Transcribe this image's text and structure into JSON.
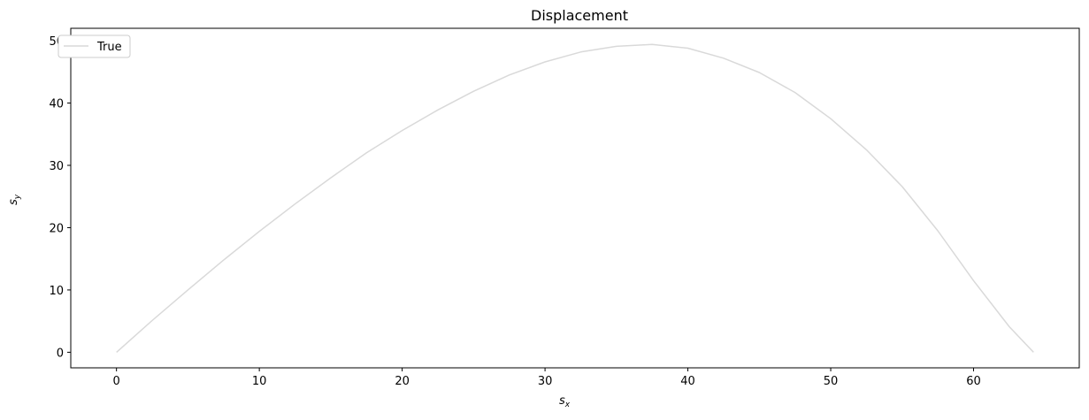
{
  "chart_data": {
    "type": "line",
    "title": "Displacement",
    "xlabel": "s",
    "xlabel_sub": "x",
    "ylabel": "s",
    "ylabel_sub": "y",
    "xlim": [
      -3.2,
      67.4
    ],
    "ylim": [
      -2.5,
      52.0
    ],
    "xticks": [
      0,
      10,
      20,
      30,
      40,
      50,
      60
    ],
    "yticks": [
      0,
      10,
      20,
      30,
      40,
      50
    ],
    "grid": false,
    "legend": {
      "position": "top-left",
      "entries": [
        "True"
      ]
    },
    "series": [
      {
        "name": "True",
        "color": "#d9d9d9",
        "x": [
          0.0,
          2.5,
          5.0,
          7.5,
          10.0,
          12.5,
          15.0,
          17.5,
          20.0,
          22.5,
          25.0,
          27.5,
          30.0,
          32.5,
          35.0,
          37.5,
          40.0,
          42.5,
          45.0,
          47.5,
          50.0,
          52.5,
          55.0,
          57.5,
          60.0,
          62.5,
          64.2
        ],
        "y": [
          0.0,
          5.1,
          10.0,
          14.8,
          19.4,
          23.8,
          28.0,
          32.0,
          35.6,
          38.9,
          41.9,
          44.5,
          46.6,
          48.2,
          49.1,
          49.4,
          48.8,
          47.2,
          44.9,
          41.7,
          37.5,
          32.5,
          26.6,
          19.5,
          11.5,
          4.1,
          0.0
        ]
      }
    ]
  }
}
